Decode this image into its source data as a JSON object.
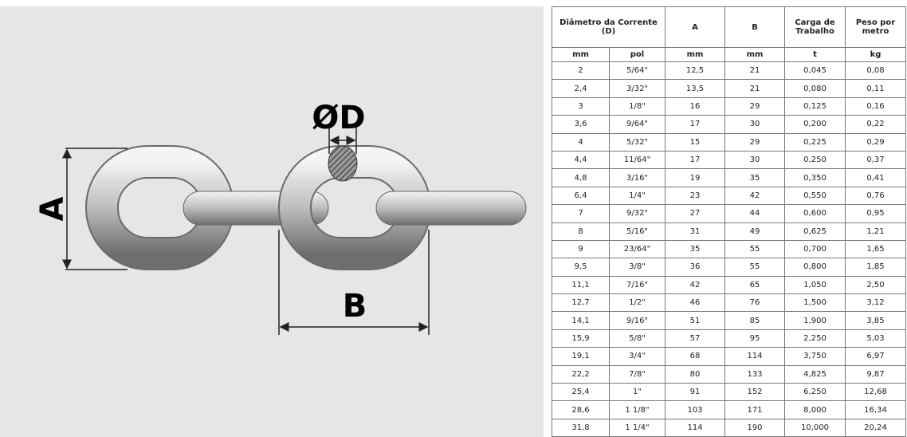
{
  "diagram": {
    "labels": {
      "a": "A",
      "b": "B",
      "d": "ØD"
    }
  },
  "table": {
    "header": [
      "Diâmetro da Corrente (D)",
      "A",
      "B",
      "Carga de Trabalho",
      "Peso por metro"
    ],
    "units": [
      "mm",
      "pol",
      "mm",
      "mm",
      "t",
      "kg"
    ],
    "rows": [
      [
        "2",
        "5/64\"",
        "12,5",
        "21",
        "0,045",
        "0,08"
      ],
      [
        "2,4",
        "3/32\"",
        "13,5",
        "21",
        "0,080",
        "0,11"
      ],
      [
        "3",
        "1/8\"",
        "16",
        "29",
        "0,125",
        "0,16"
      ],
      [
        "3,6",
        "9/64\"",
        "17",
        "30",
        "0,200",
        "0,22"
      ],
      [
        "4",
        "5/32\"",
        "15",
        "29",
        "0,225",
        "0,29"
      ],
      [
        "4,4",
        "11/64\"",
        "17",
        "30",
        "0,250",
        "0,37"
      ],
      [
        "4,8",
        "3/16\"",
        "19",
        "35",
        "0,350",
        "0,41"
      ],
      [
        "6,4",
        "1/4\"",
        "23",
        "42",
        "0,550",
        "0,76"
      ],
      [
        "7",
        "9/32\"",
        "27",
        "44",
        "0,600",
        "0,95"
      ],
      [
        "8",
        "5/16\"",
        "31",
        "49",
        "0,625",
        "1,21"
      ],
      [
        "9",
        "23/64\"",
        "35",
        "55",
        "0,700",
        "1,65"
      ],
      [
        "9,5",
        "3/8\"",
        "36",
        "55",
        "0,800",
        "1,85"
      ],
      [
        "11,1",
        "7/16\"",
        "42",
        "65",
        "1,050",
        "2,50"
      ],
      [
        "12,7",
        "1/2\"",
        "46",
        "76",
        "1,500",
        "3,12"
      ],
      [
        "14,1",
        "9/16\"",
        "51",
        "85",
        "1,900",
        "3,85"
      ],
      [
        "15,9",
        "5/8\"",
        "57",
        "95",
        "2,250",
        "5,03"
      ],
      [
        "19,1",
        "3/4\"",
        "68",
        "114",
        "3,750",
        "6,97"
      ],
      [
        "22,2",
        "7/8\"",
        "80",
        "133",
        "4,825",
        "9,87"
      ],
      [
        "25,4",
        "1\"",
        "91",
        "152",
        "6,250",
        "12,68"
      ],
      [
        "28,6",
        "1 1/8\"",
        "103",
        "171",
        "8,000",
        "16,34"
      ],
      [
        "31,8",
        "1 1/4\"",
        "114",
        "190",
        "10,000",
        "20,24"
      ]
    ]
  }
}
